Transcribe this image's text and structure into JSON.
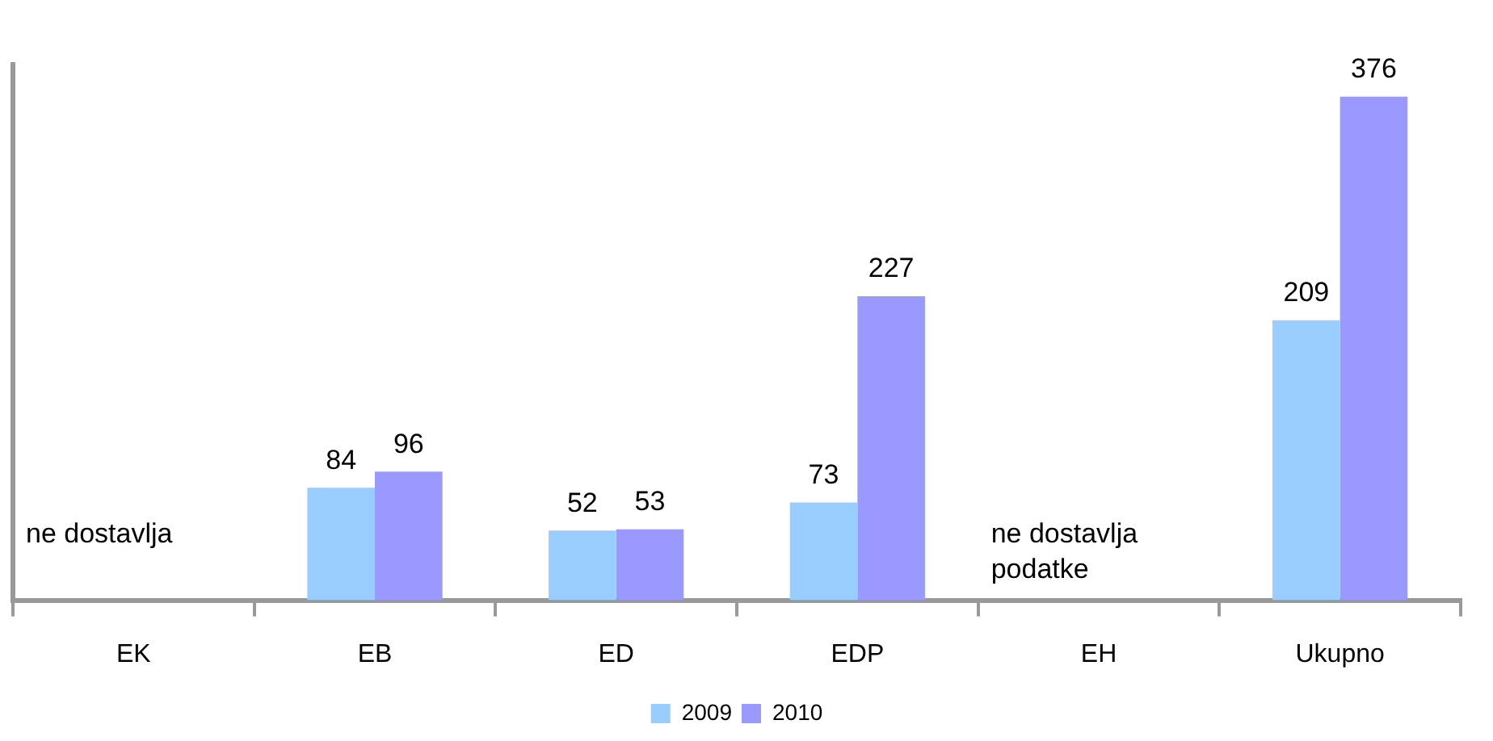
{
  "chart_data": {
    "type": "bar",
    "categories": [
      "EK",
      "EB",
      "ED",
      "EDP",
      "EH",
      "Ukupno"
    ],
    "series": [
      {
        "name": "2009",
        "color": "#99ccff",
        "values": [
          null,
          84,
          52,
          73,
          null,
          209
        ]
      },
      {
        "name": "2010",
        "color": "#9999ff",
        "values": [
          null,
          96,
          53,
          227,
          null,
          376
        ]
      }
    ],
    "data_labels": true,
    "legend": "bottom",
    "grid": false,
    "tick_labels": "x",
    "annotations": [
      "ne dostavlja",
      "ne dostavlja podatke"
    ]
  }
}
